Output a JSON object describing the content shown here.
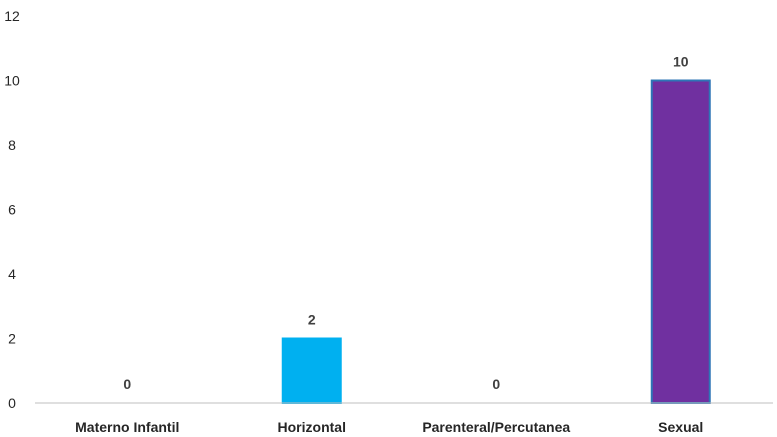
{
  "chart_data": {
    "type": "bar",
    "categories": [
      "Materno Infantil",
      "Horizontal",
      "Parenteral/Percutanea",
      "Sexual"
    ],
    "values": [
      0,
      2,
      0,
      10
    ],
    "data_labels": [
      "0",
      "2",
      "0",
      "10"
    ],
    "bar_colors": [
      "#00B0F0",
      "#00B0F0",
      "#00B0F0",
      "#7030A0"
    ],
    "bar_outline_colors": [
      "#00B0F0",
      "#00B0F0",
      "#00B0F0",
      "#2E75B6"
    ],
    "title": "",
    "xlabel": "",
    "ylabel": "",
    "ylim": [
      0,
      12
    ],
    "yticks": [
      0,
      2,
      4,
      6,
      8,
      10,
      12
    ],
    "ytick_labels": [
      "0",
      "2",
      "4",
      "6",
      "8",
      "10",
      "12"
    ],
    "grid": false,
    "legend": "none",
    "axis_color": "#bfbfbf"
  }
}
